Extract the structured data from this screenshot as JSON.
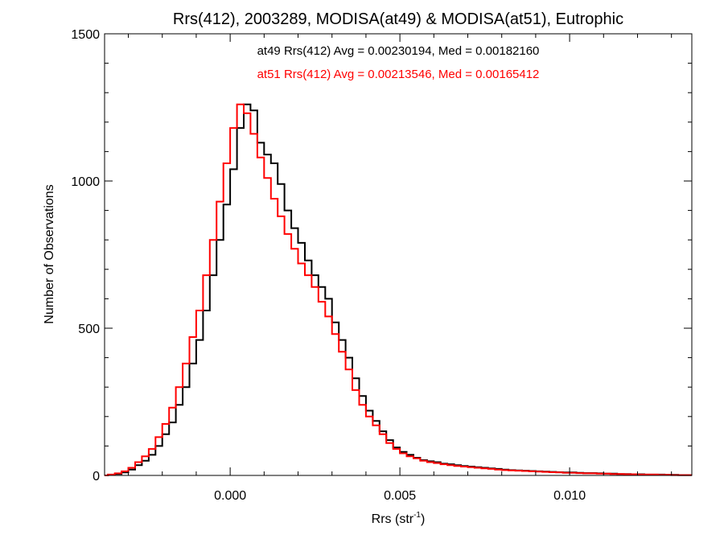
{
  "chart_data": {
    "type": "line",
    "title": "Rrs(412), 2003289, MODISA(at49) & MODISA(at51), Eutrophic",
    "xlabel_main": "Rrs (str",
    "xlabel_sup": "-1",
    "xlabel_close": ")",
    "ylabel": "Number of Observations",
    "xlim": [
      -0.0037,
      0.0136
    ],
    "ylim": [
      0,
      1500
    ],
    "x_ticks": [
      {
        "value": 0.0,
        "label": "0.000"
      },
      {
        "value": 0.005,
        "label": "0.005"
      },
      {
        "value": 0.01,
        "label": "0.010"
      }
    ],
    "y_ticks": [
      {
        "value": 0,
        "label": "0"
      },
      {
        "value": 500,
        "label": "500"
      },
      {
        "value": 1000,
        "label": "1000"
      },
      {
        "value": 1500,
        "label": "1500"
      }
    ],
    "grid": false,
    "plot_style": "histogram-step",
    "annotations": [
      {
        "text": "at49 Rrs(412) Avg = 0.00230194, Med = 0.00182160",
        "color": "#000000"
      },
      {
        "text": "at51 Rrs(412) Avg = 0.00213546, Med = 0.00165412",
        "color": "#ff0000"
      }
    ],
    "series": [
      {
        "color": "#000000",
        "x": [
          -0.0037,
          -0.0035,
          -0.0033,
          -0.0031,
          -0.0029,
          -0.0027,
          -0.0025,
          -0.0023,
          -0.0021,
          -0.0019,
          -0.0017,
          -0.0015,
          -0.0013,
          -0.0011,
          -0.0009,
          -0.0007,
          -0.0005,
          -0.0003,
          -0.0001,
          0.0001,
          0.0003,
          0.0005,
          0.0007,
          0.0009,
          0.0011,
          0.0013,
          0.0015,
          0.0017,
          0.0019,
          0.0021,
          0.0023,
          0.0025,
          0.0027,
          0.0029,
          0.0031,
          0.0033,
          0.0035,
          0.0037,
          0.0039,
          0.0041,
          0.0043,
          0.0045,
          0.0047,
          0.0049,
          0.0051,
          0.0053,
          0.0055,
          0.0057,
          0.0059,
          0.0061,
          0.0063,
          0.0065,
          0.0067,
          0.0069,
          0.0071,
          0.0073,
          0.0075,
          0.0077,
          0.0079,
          0.0081,
          0.0083,
          0.0085,
          0.0087,
          0.0089,
          0.0091,
          0.0093,
          0.0095,
          0.0097,
          0.0099,
          0.0101,
          0.0103,
          0.0105,
          0.0107,
          0.0109,
          0.0111,
          0.0113,
          0.0115,
          0.0117,
          0.0119,
          0.0121,
          0.0123,
          0.0125,
          0.0127,
          0.0129,
          0.0131,
          0.0133,
          0.0135
        ],
        "values": [
          0,
          2,
          5,
          10,
          20,
          35,
          50,
          70,
          100,
          140,
          180,
          240,
          300,
          380,
          460,
          560,
          680,
          800,
          920,
          1040,
          1180,
          1260,
          1240,
          1130,
          1090,
          1060,
          990,
          900,
          840,
          790,
          730,
          680,
          640,
          600,
          520,
          460,
          400,
          330,
          270,
          220,
          185,
          150,
          120,
          95,
          80,
          70,
          60,
          52,
          48,
          45,
          40,
          38,
          35,
          32,
          30,
          28,
          26,
          24,
          22,
          20,
          18,
          17,
          16,
          15,
          14,
          13,
          12,
          11,
          10,
          10,
          9,
          8,
          8,
          7,
          6,
          6,
          5,
          5,
          4,
          4,
          3,
          3,
          3,
          2,
          2,
          1,
          1
        ]
      },
      {
        "color": "#ff0000",
        "x": [
          -0.0037,
          -0.0035,
          -0.0033,
          -0.0031,
          -0.0029,
          -0.0027,
          -0.0025,
          -0.0023,
          -0.0021,
          -0.0019,
          -0.0017,
          -0.0015,
          -0.0013,
          -0.0011,
          -0.0009,
          -0.0007,
          -0.0005,
          -0.0003,
          -0.0001,
          0.0001,
          0.0003,
          0.0005,
          0.0007,
          0.0009,
          0.0011,
          0.0013,
          0.0015,
          0.0017,
          0.0019,
          0.0021,
          0.0023,
          0.0025,
          0.0027,
          0.0029,
          0.0031,
          0.0033,
          0.0035,
          0.0037,
          0.0039,
          0.0041,
          0.0043,
          0.0045,
          0.0047,
          0.0049,
          0.0051,
          0.0053,
          0.0055,
          0.0057,
          0.0059,
          0.0061,
          0.0063,
          0.0065,
          0.0067,
          0.0069,
          0.0071,
          0.0073,
          0.0075,
          0.0077,
          0.0079,
          0.0081,
          0.0083,
          0.0085,
          0.0087,
          0.0089,
          0.0091,
          0.0093,
          0.0095,
          0.0097,
          0.0099,
          0.0101,
          0.0103,
          0.0105,
          0.0107,
          0.0109,
          0.0111,
          0.0113,
          0.0115,
          0.0117,
          0.0119,
          0.0121,
          0.0123,
          0.0125,
          0.0127,
          0.0129,
          0.0131,
          0.0133,
          0.0135
        ],
        "values": [
          0,
          3,
          7,
          14,
          26,
          45,
          65,
          90,
          130,
          175,
          230,
          300,
          380,
          470,
          560,
          680,
          800,
          930,
          1060,
          1180,
          1260,
          1230,
          1160,
          1080,
          1010,
          940,
          880,
          820,
          770,
          720,
          680,
          640,
          590,
          540,
          480,
          420,
          360,
          290,
          240,
          200,
          170,
          140,
          110,
          90,
          75,
          65,
          58,
          50,
          45,
          42,
          38,
          35,
          32,
          30,
          28,
          26,
          24,
          22,
          20,
          18,
          17,
          16,
          15,
          14,
          13,
          12,
          11,
          10,
          9,
          9,
          8,
          7,
          7,
          6,
          6,
          5,
          5,
          4,
          4,
          3,
          3,
          3,
          2,
          2,
          1,
          1,
          1
        ]
      }
    ]
  }
}
